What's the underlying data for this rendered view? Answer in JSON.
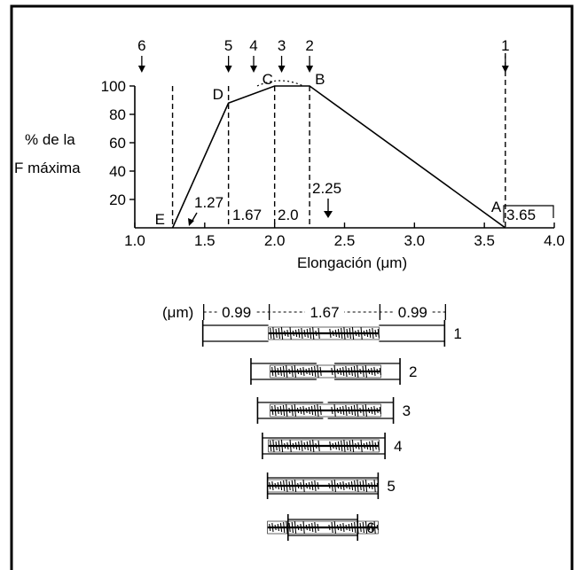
{
  "chart_data": {
    "type": "line",
    "xlabel": "Elongación (μm)",
    "ylabel_lines": [
      "% de la",
      "F máxima"
    ],
    "xlim": [
      1.0,
      4.0
    ],
    "ylim": [
      0,
      100
    ],
    "x_ticks": [
      "1.0",
      "1.5",
      "2.0",
      "2.5",
      "3.0",
      "3.5",
      "4.0"
    ],
    "y_ticks": [
      "20",
      "40",
      "60",
      "80",
      "100"
    ],
    "x": [
      1.27,
      1.67,
      2.0,
      2.25,
      3.65
    ],
    "y": [
      0,
      88,
      100,
      100,
      0
    ],
    "points": [
      {
        "label": "E",
        "x": 1.27,
        "y": 0
      },
      {
        "label": "D",
        "x": 1.67,
        "y": 88
      },
      {
        "label": "C",
        "x": 2.0,
        "y": 100
      },
      {
        "label": "B",
        "x": 2.25,
        "y": 100
      },
      {
        "label": "A",
        "x": 3.65,
        "y": 0
      }
    ],
    "annotations": [
      "1.27",
      "1.67",
      "2.0",
      "2.25",
      "3.65"
    ],
    "dashed_lines_x": [
      1.27,
      1.67,
      2.0,
      2.25,
      3.65
    ],
    "length_markers": [
      {
        "label": "1",
        "x": 3.65
      },
      {
        "label": "2",
        "x": 2.25
      },
      {
        "label": "3",
        "x": 2.05
      },
      {
        "label": "4",
        "x": 1.85
      },
      {
        "label": "5",
        "x": 1.67
      },
      {
        "label": "6",
        "x": 1.05
      }
    ]
  },
  "sarcomere_diagram": {
    "unit_label": "(μm)",
    "dimensions": [
      "0.99",
      "1.67",
      "0.99"
    ],
    "rows": [
      {
        "label": "1",
        "length": 3.65
      },
      {
        "label": "2",
        "length": 2.25
      },
      {
        "label": "3",
        "length": 2.05
      },
      {
        "label": "4",
        "length": 1.85
      },
      {
        "label": "5",
        "length": 1.67
      },
      {
        "label": "6",
        "length": 1.05
      }
    ]
  }
}
